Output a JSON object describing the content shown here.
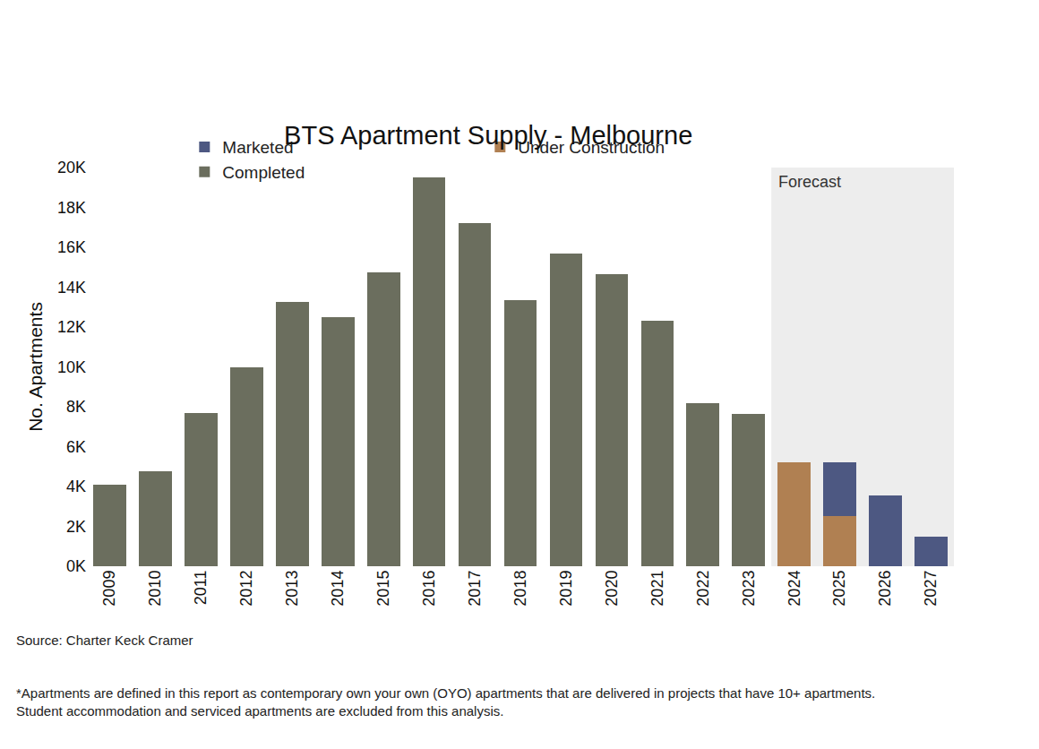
{
  "chart_data": {
    "type": "bar",
    "title": "BTS Apartment Supply - Melbourne",
    "y_label": "No. Apartments",
    "categories": [
      "2009",
      "2010",
      "2011",
      "2012",
      "2013",
      "2014",
      "2015",
      "2016",
      "2017",
      "2018",
      "2019",
      "2020",
      "2021",
      "2022",
      "2023",
      "2024",
      "2025",
      "2026",
      "2027"
    ],
    "series": [
      {
        "name": "Marketed",
        "color": "#4d5882",
        "values": [
          null,
          null,
          null,
          null,
          null,
          null,
          null,
          null,
          null,
          null,
          null,
          null,
          null,
          null,
          null,
          null,
          2700,
          3550,
          1500
        ]
      },
      {
        "name": "Under Construction",
        "color": "#b08052",
        "values": [
          null,
          null,
          null,
          null,
          null,
          null,
          null,
          null,
          null,
          null,
          null,
          null,
          null,
          null,
          null,
          5200,
          2500,
          null,
          null
        ]
      },
      {
        "name": "Completed",
        "color": "#6b6e5e",
        "values": [
          4100,
          4750,
          7700,
          10000,
          13250,
          12500,
          14750,
          19500,
          17200,
          13350,
          15700,
          14650,
          12300,
          8200,
          7650,
          null,
          null,
          null,
          null
        ]
      }
    ],
    "ylim": [
      0,
      20000
    ],
    "yticks": [
      {
        "value": 0,
        "label": "0K"
      },
      {
        "value": 2000,
        "label": "2K"
      },
      {
        "value": 4000,
        "label": "4K"
      },
      {
        "value": 6000,
        "label": "6K"
      },
      {
        "value": 8000,
        "label": "8K"
      },
      {
        "value": 10000,
        "label": "10K"
      },
      {
        "value": 12000,
        "label": "12K"
      },
      {
        "value": 14000,
        "label": "14K"
      },
      {
        "value": 16000,
        "label": "16K"
      },
      {
        "value": 18000,
        "label": "18K"
      },
      {
        "value": 20000,
        "label": "20K"
      }
    ],
    "stacked": true,
    "grid": false,
    "legend": "top",
    "forecast": {
      "label": "Forecast",
      "from": "2024",
      "to": "2027"
    },
    "source": "Source: Charter Keck Cramer",
    "footnote": "*Apartments are defined in this report as contemporary own your own (OYO) apartments that are delivered in projects that have 10+ apartments. Student accommodation and serviced apartments are excluded from this analysis."
  }
}
